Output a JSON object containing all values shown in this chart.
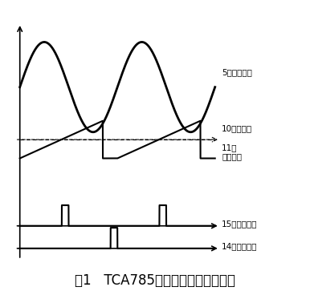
{
  "title": "图1   TCA785的主要引脚及相应波形",
  "title_fontsize": 12,
  "background_color": "#ffffff",
  "line_color": "#000000",
  "labels": {
    "pin5": "5脚同步信号",
    "pin10": "10脚锯齿波",
    "pin11": "11脚\n控制电压",
    "pin15": "15脚输出信号",
    "pin14": "14脚输出信号"
  }
}
